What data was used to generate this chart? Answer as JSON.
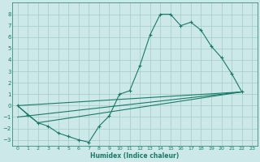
{
  "bg_color": "#cce8e8",
  "grid_color": "#aacece",
  "line_color": "#1a7a6a",
  "xlabel": "Humidex (Indice chaleur)",
  "xlim": [
    -0.5,
    23.5
  ],
  "ylim": [
    -3.5,
    9.0
  ],
  "yticks": [
    -3,
    -2,
    -1,
    0,
    1,
    2,
    3,
    4,
    5,
    6,
    7,
    8
  ],
  "xticks": [
    0,
    1,
    2,
    3,
    4,
    5,
    6,
    7,
    8,
    9,
    10,
    11,
    12,
    13,
    14,
    15,
    16,
    17,
    18,
    19,
    20,
    21,
    22,
    23
  ],
  "line1_x": [
    0,
    1,
    2,
    3,
    4,
    5,
    6,
    7,
    8,
    9,
    10,
    11,
    12,
    13,
    14,
    15,
    16,
    17,
    18,
    19,
    20,
    21,
    22
  ],
  "line1_y": [
    0,
    -0.8,
    -1.5,
    -1.8,
    -2.4,
    -2.7,
    -3.0,
    -3.2,
    -1.8,
    -0.9,
    1.0,
    1.3,
    3.5,
    6.2,
    8.0,
    8.0,
    7.0,
    7.3,
    6.6,
    5.2,
    4.2,
    2.8,
    1.2
  ],
  "line2_x": [
    0,
    22
  ],
  "line2_y": [
    0,
    1.2
  ],
  "line3_x": [
    0,
    2,
    22
  ],
  "line3_y": [
    0,
    -1.5,
    1.2
  ],
  "line4_x": [
    0,
    22
  ],
  "line4_y": [
    -1.0,
    1.2
  ]
}
